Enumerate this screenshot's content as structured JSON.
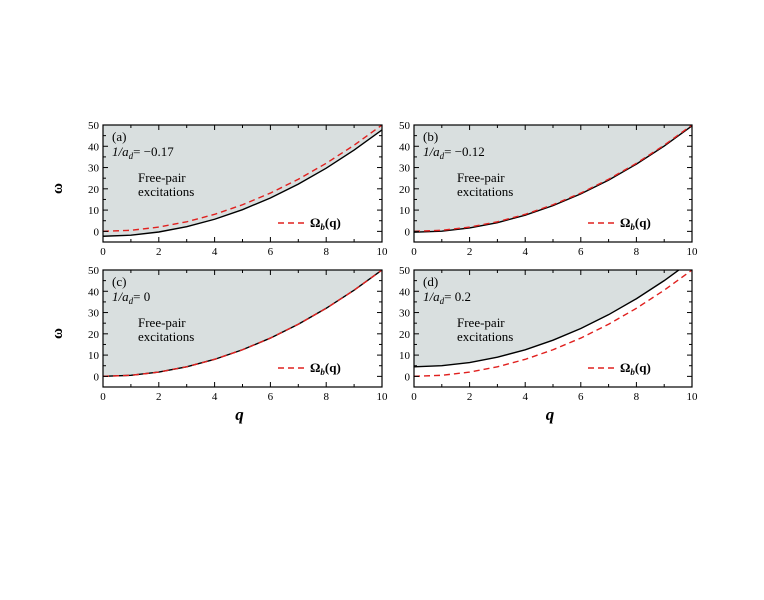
{
  "figure": {
    "xlabel": "q",
    "ylabel": "ω",
    "region_label_line1": "Free-pair",
    "region_label_line2": "excitations",
    "legend_symbol": "Ω",
    "legend_sub": "b",
    "legend_arg": "(q)",
    "colors": {
      "shade": "#d9dfdf",
      "boundary": "#000000",
      "omega_b": "#e0201e"
    }
  },
  "chart_data": [
    {
      "type": "area",
      "panel": "(a)",
      "param_prefix": "1/a",
      "param_sub": "d",
      "param_value": "= −0.17",
      "xlim": [
        0,
        10
      ],
      "ylim": [
        -5,
        50
      ],
      "xticks": [
        "0",
        "2",
        "4",
        "6",
        "8",
        "10"
      ],
      "yticks": [
        "0",
        "10",
        "20",
        "30",
        "40",
        "50"
      ],
      "show_xlabel": false,
      "show_ylabel": true,
      "x": [
        0,
        1,
        2,
        3,
        4,
        5,
        6,
        7,
        8,
        9,
        10
      ],
      "series": [
        {
          "role": "continuum-threshold",
          "values": [
            -2.3,
            -1.8,
            -0.3,
            2.2,
            5.7,
            10.2,
            15.7,
            22.2,
            29.7,
            38.2,
            47.7
          ]
        },
        {
          "name": "Ωb(q)",
          "values": [
            0,
            0.5,
            2.0,
            4.5,
            8.0,
            12.5,
            18.0,
            24.5,
            32.0,
            40.5,
            50.0
          ]
        }
      ]
    },
    {
      "type": "area",
      "panel": "(b)",
      "param_prefix": "1/a",
      "param_sub": "d",
      "param_value": "= −0.12",
      "xlim": [
        0,
        10
      ],
      "ylim": [
        -5,
        50
      ],
      "xticks": [
        "0",
        "2",
        "4",
        "6",
        "8",
        "10"
      ],
      "yticks": [
        "0",
        "10",
        "20",
        "30",
        "40",
        "50"
      ],
      "show_xlabel": false,
      "show_ylabel": false,
      "x": [
        0,
        1,
        2,
        3,
        4,
        5,
        6,
        7,
        8,
        9,
        10
      ],
      "series": [
        {
          "role": "continuum-threshold",
          "values": [
            -0.4,
            0.1,
            1.6,
            4.1,
            7.6,
            12.1,
            17.6,
            24.1,
            31.6,
            40.1,
            49.6
          ]
        },
        {
          "name": "Ωb(q)",
          "values": [
            0,
            0.5,
            2.0,
            4.5,
            8.0,
            12.5,
            18.0,
            24.5,
            32.0,
            40.5,
            50.0
          ]
        }
      ]
    },
    {
      "type": "area",
      "panel": "(c)",
      "param_prefix": "1/a",
      "param_sub": "d",
      "param_value": "= 0",
      "xlim": [
        0,
        10
      ],
      "ylim": [
        -5,
        50
      ],
      "xticks": [
        "0",
        "2",
        "4",
        "6",
        "8",
        "10"
      ],
      "yticks": [
        "0",
        "10",
        "20",
        "30",
        "40",
        "50"
      ],
      "show_xlabel": true,
      "show_ylabel": true,
      "x": [
        0,
        1,
        2,
        3,
        4,
        5,
        6,
        7,
        8,
        9,
        10
      ],
      "series": [
        {
          "role": "continuum-threshold",
          "values": [
            0,
            0.5,
            2.0,
            4.5,
            8.0,
            12.5,
            18.0,
            24.5,
            32.0,
            40.5,
            50.0
          ]
        },
        {
          "name": "Ωb(q)",
          "values": [
            0,
            0.5,
            2.0,
            4.5,
            8.0,
            12.5,
            18.0,
            24.5,
            32.0,
            40.5,
            50.0
          ]
        }
      ]
    },
    {
      "type": "area",
      "panel": "(d)",
      "param_prefix": "1/a",
      "param_sub": "d",
      "param_value": "= 0.2",
      "xlim": [
        0,
        10
      ],
      "ylim": [
        -5,
        50
      ],
      "xticks": [
        "0",
        "2",
        "4",
        "6",
        "8",
        "10"
      ],
      "yticks": [
        "0",
        "10",
        "20",
        "30",
        "40",
        "50"
      ],
      "show_xlabel": true,
      "show_ylabel": false,
      "x": [
        0,
        1,
        2,
        3,
        4,
        5,
        6,
        7,
        8,
        9,
        10
      ],
      "series": [
        {
          "role": "continuum-threshold",
          "values": [
            4.5,
            5.0,
            6.5,
            9.0,
            12.5,
            17.0,
            22.5,
            29.0,
            36.5,
            45.0,
            54.5
          ]
        },
        {
          "name": "Ωb(q)",
          "values": [
            0,
            0.5,
            2.0,
            4.5,
            8.0,
            12.5,
            18.0,
            24.5,
            32.0,
            40.5,
            50.0
          ]
        }
      ]
    }
  ]
}
